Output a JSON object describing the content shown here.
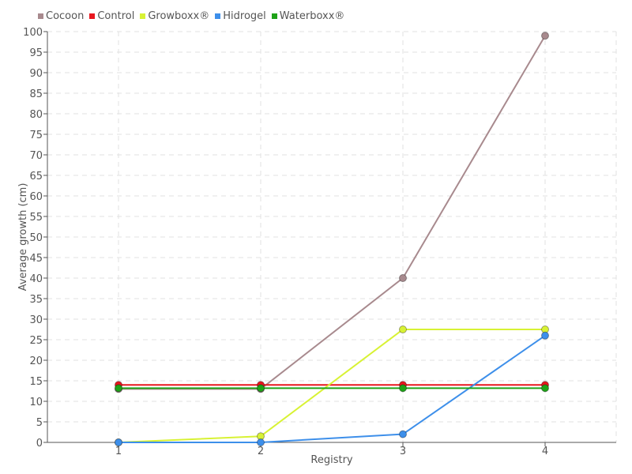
{
  "chart_data": {
    "type": "line",
    "categories": [
      "1",
      "2",
      "3",
      "4"
    ],
    "xlabel": "Registry",
    "ylabel": "Average growth (cm)",
    "ylim": [
      0,
      100
    ],
    "yticks": [
      0,
      5,
      10,
      15,
      20,
      25,
      30,
      35,
      40,
      45,
      50,
      55,
      60,
      65,
      70,
      75,
      80,
      85,
      90,
      95,
      100
    ],
    "grid": true,
    "legend_position": "top-left",
    "series": [
      {
        "name": "Cocoon",
        "color": "#a88a8e",
        "values": [
          13,
          13,
          40,
          99
        ]
      },
      {
        "name": "Control",
        "color": "#e8171f",
        "values": [
          14,
          14,
          14,
          14
        ]
      },
      {
        "name": "Growboxx®",
        "color": "#d8f234",
        "values": [
          0,
          1.5,
          27.5,
          27.5
        ]
      },
      {
        "name": "Hidrogel",
        "color": "#3d8fea",
        "values": [
          0,
          0,
          2,
          26
        ]
      },
      {
        "name": "Waterboxx®",
        "color": "#1ea218",
        "values": [
          13.2,
          13.2,
          13.2,
          13.2
        ]
      }
    ]
  }
}
